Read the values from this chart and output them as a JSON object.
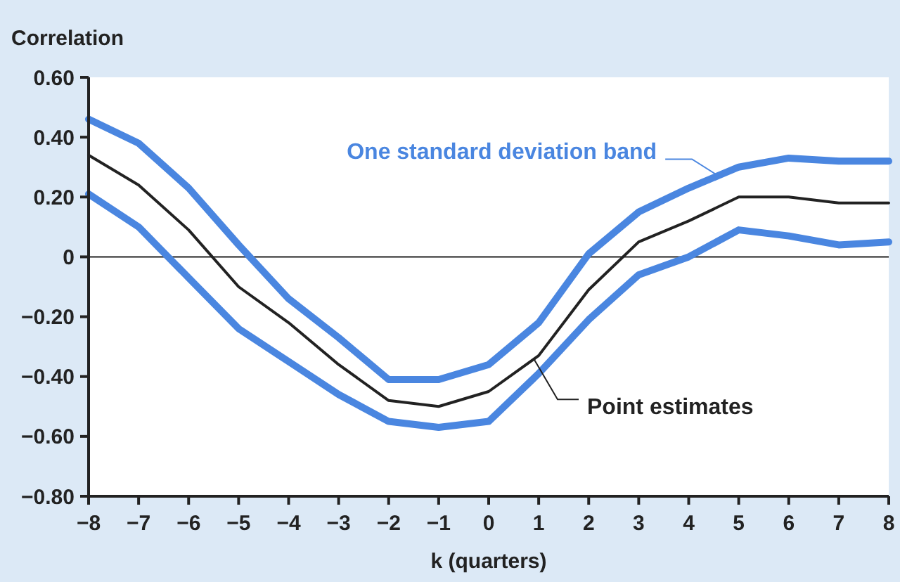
{
  "chart_data": {
    "type": "line",
    "ylabel": "Correlation",
    "xlabel": "k (quarters)",
    "x": [
      -8,
      -7,
      -6,
      -5,
      -4,
      -3,
      -2,
      -1,
      0,
      1,
      2,
      3,
      4,
      5,
      6,
      7,
      8
    ],
    "series": [
      {
        "color": "#4a86e0",
        "values": [
          0.46,
          0.38,
          0.23,
          0.04,
          -0.14,
          -0.27,
          -0.41,
          -0.41,
          -0.36,
          -0.22,
          0.01,
          0.15,
          0.23,
          0.3,
          0.33,
          0.32,
          0.32
        ]
      },
      {
        "color": "#222222",
        "values": [
          0.34,
          0.24,
          0.09,
          -0.1,
          -0.22,
          -0.36,
          -0.48,
          -0.5,
          -0.45,
          -0.33,
          -0.11,
          0.05,
          0.12,
          0.2,
          0.2,
          0.18,
          0.18
        ]
      },
      {
        "color": "#4a86e0",
        "values": [
          0.21,
          0.1,
          -0.07,
          -0.24,
          -0.35,
          -0.46,
          -0.55,
          -0.57,
          -0.55,
          -0.39,
          -0.21,
          -0.06,
          0.0,
          0.09,
          0.07,
          0.04,
          0.05
        ]
      }
    ],
    "xlim": [
      -8,
      8
    ],
    "ylim": [
      -0.8,
      0.6
    ],
    "xticks": [
      {
        "value": -8,
        "label": "−8"
      },
      {
        "value": -7,
        "label": "−7"
      },
      {
        "value": -6,
        "label": "−6"
      },
      {
        "value": -5,
        "label": "−5"
      },
      {
        "value": -4,
        "label": "−4"
      },
      {
        "value": -3,
        "label": "−3"
      },
      {
        "value": -2,
        "label": "−2"
      },
      {
        "value": -1,
        "label": "−1"
      },
      0,
      1,
      2,
      3,
      4,
      5,
      6,
      7,
      8
    ],
    "yticks": [
      {
        "value": 0.6,
        "label": "0.60"
      },
      {
        "value": 0.4,
        "label": "0.40"
      },
      {
        "value": 0.2,
        "label": "0.20"
      },
      0,
      {
        "value": -0.2,
        "label": "−0.20"
      },
      {
        "value": -0.4,
        "label": "−0.40"
      },
      {
        "value": -0.6,
        "label": "−0.60"
      },
      {
        "value": -0.8,
        "label": "−0.80"
      }
    ],
    "ref_lines": [
      {
        "axis": "y",
        "value": 0,
        "color": "#222222"
      }
    ],
    "annotations": [
      {
        "text": "One standard deviation band",
        "x": 4.6,
        "y": 0.27
      },
      {
        "text": "Point estimates",
        "x": 0.9,
        "y": -0.34
      }
    ],
    "grid": false
  }
}
